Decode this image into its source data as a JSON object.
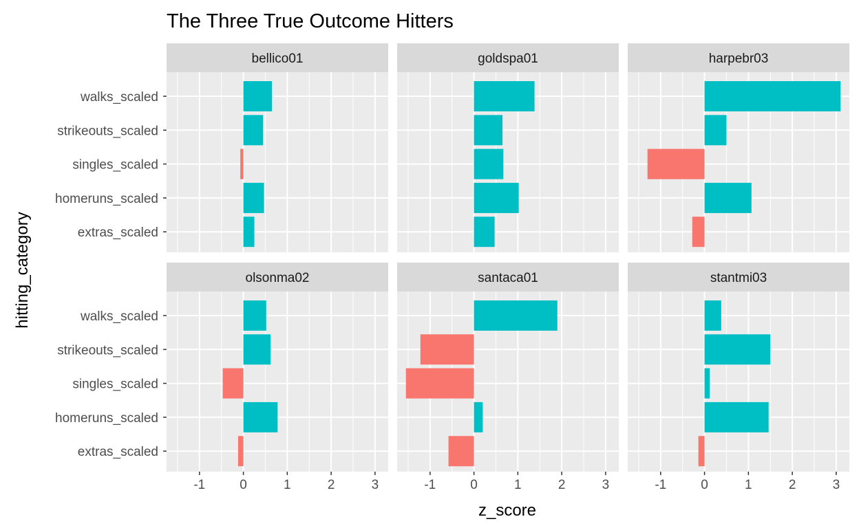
{
  "chart_data": {
    "type": "bar",
    "orientation": "horizontal",
    "title": "The Three True Outcome Hitters",
    "xlabel": "z_score",
    "ylabel": "hitting_category",
    "xlim": [
      -1.75,
      3.3
    ],
    "x_ticks": [
      "-1",
      "0",
      "1",
      "2",
      "3"
    ],
    "x_tick_values": [
      -1,
      0,
      1,
      2,
      3
    ],
    "categories": [
      "walks_scaled",
      "strikeouts_scaled",
      "singles_scaled",
      "homeruns_scaled",
      "extras_scaled"
    ],
    "colors": {
      "positive": "#00BFC4",
      "negative": "#F8766D",
      "panel_bg": "#EBEBEB",
      "strip_bg": "#D9D9D9",
      "grid": "#FFFFFF"
    },
    "grid": true,
    "legend": "none",
    "facets": [
      {
        "name": "bellico01",
        "values": [
          0.65,
          0.45,
          -0.07,
          0.47,
          0.25
        ]
      },
      {
        "name": "goldspa01",
        "values": [
          1.38,
          0.65,
          0.67,
          1.02,
          0.47
        ]
      },
      {
        "name": "harpebr03",
        "values": [
          3.1,
          0.5,
          -1.3,
          1.07,
          -0.28
        ]
      },
      {
        "name": "olsonma02",
        "values": [
          0.52,
          0.62,
          -0.47,
          0.78,
          -0.12
        ]
      },
      {
        "name": "santaca01",
        "values": [
          1.9,
          -1.22,
          -1.55,
          0.2,
          -0.58
        ]
      },
      {
        "name": "stantmi03",
        "values": [
          0.38,
          1.5,
          0.12,
          1.46,
          -0.14
        ]
      }
    ]
  }
}
